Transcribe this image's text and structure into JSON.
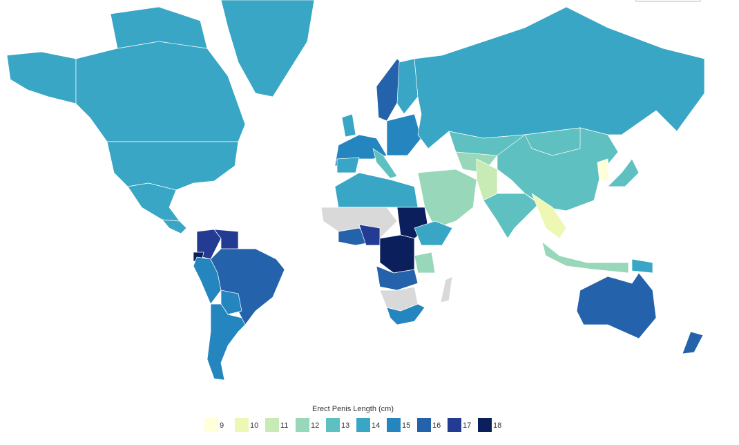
{
  "legend": {
    "title": "Erect Penis Length (cm)",
    "items": [
      {
        "value": 9,
        "color": "#ffffd9"
      },
      {
        "value": 10,
        "color": "#eef8b4"
      },
      {
        "value": 11,
        "color": "#c8eab4"
      },
      {
        "value": 12,
        "color": "#98d7b9"
      },
      {
        "value": 13,
        "color": "#5ec0c0"
      },
      {
        "value": 14,
        "color": "#38a6c4"
      },
      {
        "value": 15,
        "color": "#2585bf"
      },
      {
        "value": 16,
        "color": "#2463ab"
      },
      {
        "value": 17,
        "color": "#233b92"
      },
      {
        "value": 18,
        "color": "#0a1f5c"
      }
    ]
  },
  "missing_color": "#d9d9d9",
  "regions": [
    {
      "value": 14
    },
    {
      "value": 14
    },
    {
      "value": 14
    },
    {
      "value": 14
    },
    {
      "value": 14
    },
    {
      "value": 14
    },
    {
      "value": 14
    },
    {
      "value": 17
    },
    {
      "value": 17
    },
    {
      "value": 18
    },
    {
      "value": 15
    },
    {
      "value": 16
    },
    {
      "value": 15
    },
    {
      "value": 15
    },
    {
      "value": 15
    },
    {
      "value": 14
    },
    {
      "value": 16
    },
    {
      "value": 14
    },
    {
      "value": 15
    },
    {
      "value": 13
    },
    {
      "value": 14
    },
    {
      "value": 14
    },
    {
      "value": 13
    },
    {
      "value": 12
    },
    {
      "value": 13
    },
    {
      "value": 13
    },
    {
      "value": 9
    },
    {
      "value": 13
    },
    {
      "value": 12
    },
    {
      "value": 11
    },
    {
      "value": 13
    },
    {
      "value": 10
    },
    {
      "value": 12
    },
    {
      "value": 14
    },
    {
      "value": 16
    },
    {
      "value": 16
    },
    {
      "value": null
    },
    {
      "value": 14
    },
    {
      "value": null
    },
    {
      "value": 18
    },
    {
      "value": 16
    },
    {
      "value": 17
    },
    {
      "value": 18
    },
    {
      "value": 14
    },
    {
      "value": 12
    },
    {
      "value": 16
    },
    {
      "value": null
    },
    {
      "value": 15
    }
  ]
}
